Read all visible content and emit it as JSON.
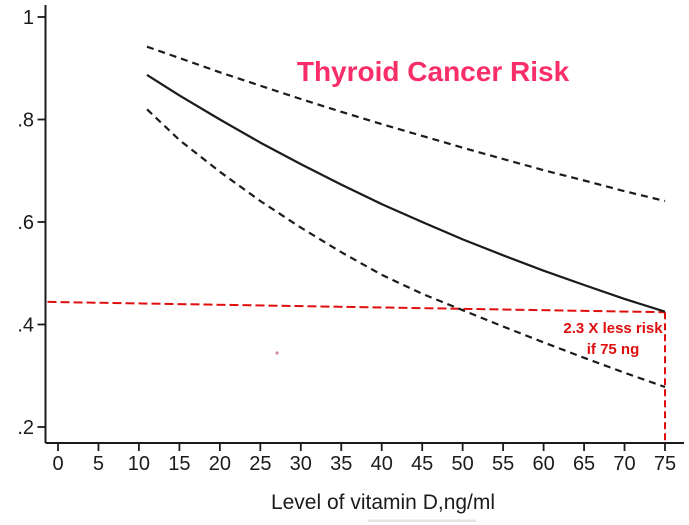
{
  "colors": {
    "axis_and_curves": "#1b1b1b",
    "reference_red": "#e00e0e",
    "title_pink": "#f92e68",
    "background": "#ffffff"
  },
  "chart_data": {
    "type": "line",
    "title": "Thyroid Cancer Risk",
    "xlabel": "Level of vitamin D,ng/ml",
    "ylabel": "",
    "grid": false,
    "legend": null,
    "xlim": [
      0,
      75
    ],
    "ylim": [
      0.2,
      1.0
    ],
    "x_ticks": [
      0,
      5,
      10,
      15,
      20,
      25,
      30,
      35,
      40,
      45,
      50,
      55,
      60,
      65,
      70,
      75
    ],
    "y_ticks": [
      1,
      0.8,
      0.6,
      0.4,
      0.2
    ],
    "y_tick_labels": [
      "1",
      ".8",
      ".6",
      ".4",
      ".2"
    ],
    "x": [
      11,
      15,
      20,
      25,
      30,
      35,
      40,
      45,
      50,
      55,
      60,
      65,
      70,
      75
    ],
    "series": [
      {
        "name": "risk-estimate",
        "style": "solid",
        "color": "#1b1b1b",
        "values": [
          0.887,
          0.847,
          0.8,
          0.755,
          0.713,
          0.673,
          0.635,
          0.6,
          0.566,
          0.535,
          0.505,
          0.477,
          0.45,
          0.425
        ]
      },
      {
        "name": "upper-confidence-band",
        "style": "dashed",
        "color": "#1b1b1b",
        "values": [
          0.942,
          0.92,
          0.892,
          0.866,
          0.84,
          0.815,
          0.791,
          0.768,
          0.745,
          0.723,
          0.701,
          0.681,
          0.66,
          0.641
        ]
      },
      {
        "name": "lower-confidence-band",
        "style": "dashed",
        "color": "#1b1b1b",
        "values": [
          0.82,
          0.76,
          0.698,
          0.641,
          0.589,
          0.541,
          0.497,
          0.46,
          0.428,
          0.396,
          0.365,
          0.335,
          0.306,
          0.278
        ]
      }
    ],
    "reference_line": {
      "name": "risk-level-at-75ng",
      "style": "dashed",
      "color": "#e00e0e",
      "points": [
        [
          -1.3,
          0.444
        ],
        [
          75,
          0.424
        ]
      ],
      "drop_line_x": 75
    },
    "annotation": {
      "line1": "2.3 X less risk",
      "line2": "if 75 ng",
      "color": "#e00e0e"
    }
  }
}
